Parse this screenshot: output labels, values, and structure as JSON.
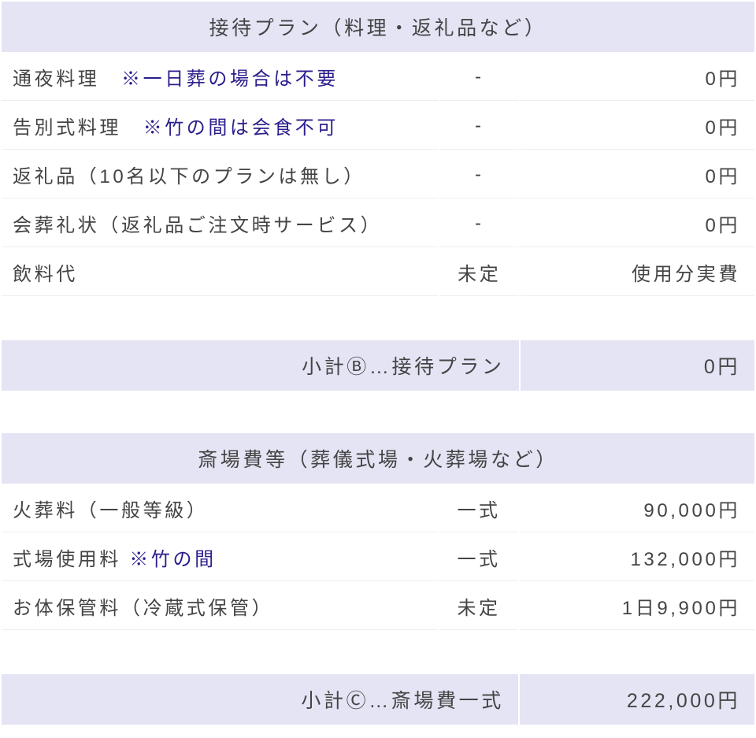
{
  "colors": {
    "header_bg": "#e4e4f5",
    "row_bg": "#ffffff",
    "text": "#444444",
    "note_text": "#2a1e8c",
    "border": "#eeeeee"
  },
  "typography": {
    "base_fontsize_pt": 18,
    "letter_spacing_em": 0.15
  },
  "tableB": {
    "header": "接待プラン（料理・返礼品など）",
    "rows": [
      {
        "name": "通夜料理　",
        "note": "※一日葬の場合は不要",
        "qty": "-",
        "amount": "0円"
      },
      {
        "name": "告別式料理　",
        "note": "※竹の間は会食不可",
        "qty": "-",
        "amount": "0円"
      },
      {
        "name": "返礼品（10名以下のプランは無し）",
        "note": "",
        "qty": "-",
        "amount": "0円"
      },
      {
        "name": "会葬礼状（返礼品ご注文時サービス）",
        "note": "",
        "qty": "-",
        "amount": "0円"
      },
      {
        "name": "飲料代",
        "note": "",
        "qty": "未定",
        "amount": "使用分実費"
      }
    ],
    "subtotal_label": "小計Ⓑ…接待プラン",
    "subtotal_amount": "0円"
  },
  "tableC": {
    "header": "斎場費等（葬儀式場・火葬場など）",
    "rows": [
      {
        "name": "火葬料（一般等級）",
        "note": "",
        "qty": "一式",
        "amount": "90,000円"
      },
      {
        "name": "式場使用料 ",
        "note": "※竹の間",
        "qty": "一式",
        "amount": "132,000円"
      },
      {
        "name": "お体保管料（冷蔵式保管）",
        "note": "",
        "qty": "未定",
        "amount": "1日9,900円"
      }
    ],
    "subtotal_label": "小計Ⓒ…斎場費一式",
    "subtotal_amount": "222,000円"
  }
}
